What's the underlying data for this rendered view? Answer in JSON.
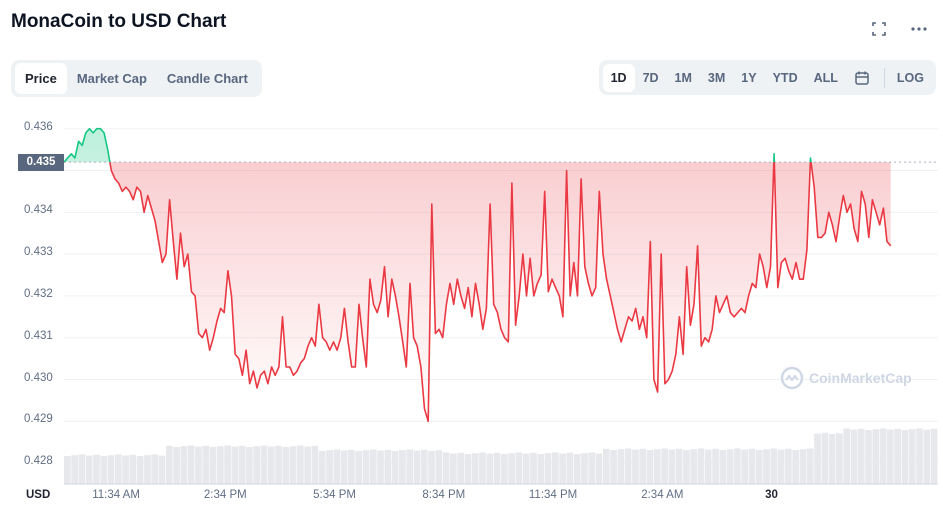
{
  "title": "MonaCoin to USD Chart",
  "icons": {
    "fullscreen": "fullscreen-icon",
    "more": "more-icon",
    "calendar": "calendar-icon"
  },
  "tabs": [
    {
      "label": "Price",
      "active": true
    },
    {
      "label": "Market Cap",
      "active": false
    },
    {
      "label": "Candle Chart",
      "active": false
    }
  ],
  "ranges": [
    {
      "label": "1D",
      "active": true
    },
    {
      "label": "7D",
      "active": false
    },
    {
      "label": "1M",
      "active": false
    },
    {
      "label": "3M",
      "active": false
    },
    {
      "label": "1Y",
      "active": false
    },
    {
      "label": "YTD",
      "active": false
    },
    {
      "label": "ALL",
      "active": false
    }
  ],
  "log_label": "LOG",
  "watermark": "CoinMarketCap",
  "colors": {
    "up": "#16c784",
    "down": "#ea3943",
    "volume": "#e6e8ec"
  },
  "chart_data": {
    "type": "line",
    "title": "MonaCoin to USD Chart",
    "y_unit_label": "USD",
    "current_price_label": "0.435",
    "reference_price": 0.4352,
    "y_ticks": [
      "0.428",
      "0.429",
      "0.430",
      "0.431",
      "0.432",
      "0.433",
      "0.434",
      "0.435",
      "0.436"
    ],
    "ylim": [
      0.4275,
      0.4364
    ],
    "x_tick_labels": [
      {
        "label": "11:34 AM",
        "bold": false
      },
      {
        "label": "2:34 PM",
        "bold": false
      },
      {
        "label": "5:34 PM",
        "bold": false
      },
      {
        "label": "8:34 PM",
        "bold": false
      },
      {
        "label": "11:34 PM",
        "bold": false
      },
      {
        "label": "2:34 AM",
        "bold": false
      },
      {
        "label": "30",
        "bold": true
      }
    ],
    "x_tick_positions": [
      1.43,
      4.43,
      7.43,
      10.43,
      13.43,
      16.43,
      19.43
    ],
    "x_range": [
      0,
      24
    ],
    "x_unit": "hours from chart start",
    "series": [
      {
        "values": [
          [
            0.0,
            0.4352
          ],
          [
            0.1,
            0.4353
          ],
          [
            0.2,
            0.4354
          ],
          [
            0.3,
            0.4353
          ],
          [
            0.4,
            0.4357
          ],
          [
            0.5,
            0.4356
          ],
          [
            0.6,
            0.4359
          ],
          [
            0.7,
            0.436
          ],
          [
            0.8,
            0.4359
          ],
          [
            0.9,
            0.436
          ],
          [
            1.0,
            0.436
          ],
          [
            1.1,
            0.4359
          ],
          [
            1.2,
            0.4355
          ],
          [
            1.3,
            0.435
          ],
          [
            1.4,
            0.4348
          ],
          [
            1.5,
            0.4347
          ],
          [
            1.6,
            0.4345
          ],
          [
            1.7,
            0.4346
          ],
          [
            1.8,
            0.4345
          ],
          [
            1.9,
            0.4343
          ],
          [
            2.0,
            0.4346
          ],
          [
            2.1,
            0.4345
          ],
          [
            2.2,
            0.434
          ],
          [
            2.3,
            0.4344
          ],
          [
            2.4,
            0.4341
          ],
          [
            2.5,
            0.4338
          ],
          [
            2.6,
            0.4333
          ],
          [
            2.7,
            0.4328
          ],
          [
            2.8,
            0.433
          ],
          [
            2.9,
            0.4343
          ],
          [
            3.0,
            0.4333
          ],
          [
            3.1,
            0.4324
          ],
          [
            3.2,
            0.4335
          ],
          [
            3.3,
            0.4327
          ],
          [
            3.4,
            0.433
          ],
          [
            3.5,
            0.4321
          ],
          [
            3.6,
            0.432
          ],
          [
            3.7,
            0.4311
          ],
          [
            3.8,
            0.431
          ],
          [
            3.9,
            0.4312
          ],
          [
            4.0,
            0.4307
          ],
          [
            4.1,
            0.431
          ],
          [
            4.2,
            0.4314
          ],
          [
            4.3,
            0.4317
          ],
          [
            4.4,
            0.4316
          ],
          [
            4.5,
            0.4326
          ],
          [
            4.6,
            0.432
          ],
          [
            4.7,
            0.4306
          ],
          [
            4.8,
            0.4305
          ],
          [
            4.9,
            0.4301
          ],
          [
            5.0,
            0.4307
          ],
          [
            5.1,
            0.4299
          ],
          [
            5.2,
            0.4302
          ],
          [
            5.3,
            0.4298
          ],
          [
            5.4,
            0.4301
          ],
          [
            5.5,
            0.4302
          ],
          [
            5.6,
            0.4299
          ],
          [
            5.7,
            0.4303
          ],
          [
            5.8,
            0.4301
          ],
          [
            5.9,
            0.4303
          ],
          [
            6.0,
            0.4315
          ],
          [
            6.1,
            0.4303
          ],
          [
            6.2,
            0.4303
          ],
          [
            6.3,
            0.4301
          ],
          [
            6.4,
            0.4302
          ],
          [
            6.5,
            0.4304
          ],
          [
            6.6,
            0.4305
          ],
          [
            6.7,
            0.4308
          ],
          [
            6.8,
            0.431
          ],
          [
            6.9,
            0.4308
          ],
          [
            7.0,
            0.4318
          ],
          [
            7.1,
            0.431
          ],
          [
            7.2,
            0.4309
          ],
          [
            7.3,
            0.4307
          ],
          [
            7.4,
            0.4309
          ],
          [
            7.5,
            0.4307
          ],
          [
            7.6,
            0.431
          ],
          [
            7.7,
            0.4317
          ],
          [
            7.8,
            0.4309
          ],
          [
            7.9,
            0.4303
          ],
          [
            8.0,
            0.4303
          ],
          [
            8.1,
            0.4318
          ],
          [
            8.2,
            0.431
          ],
          [
            8.3,
            0.4303
          ],
          [
            8.4,
            0.4324
          ],
          [
            8.5,
            0.4318
          ],
          [
            8.6,
            0.4316
          ],
          [
            8.7,
            0.4319
          ],
          [
            8.8,
            0.4327
          ],
          [
            8.9,
            0.4315
          ],
          [
            9.0,
            0.4324
          ],
          [
            9.1,
            0.432
          ],
          [
            9.2,
            0.4315
          ],
          [
            9.3,
            0.4309
          ],
          [
            9.4,
            0.4303
          ],
          [
            9.5,
            0.4323
          ],
          [
            9.6,
            0.431
          ],
          [
            9.7,
            0.4308
          ],
          [
            9.8,
            0.4303
          ],
          [
            9.9,
            0.4293
          ],
          [
            10.0,
            0.429
          ],
          [
            10.1,
            0.4342
          ],
          [
            10.2,
            0.4311
          ],
          [
            10.3,
            0.4312
          ],
          [
            10.4,
            0.431
          ],
          [
            10.5,
            0.4318
          ],
          [
            10.6,
            0.4323
          ],
          [
            10.7,
            0.4318
          ],
          [
            10.8,
            0.4324
          ],
          [
            10.9,
            0.432
          ],
          [
            11.0,
            0.4317
          ],
          [
            11.1,
            0.4322
          ],
          [
            11.2,
            0.4315
          ],
          [
            11.3,
            0.4323
          ],
          [
            11.4,
            0.4318
          ],
          [
            11.5,
            0.4312
          ],
          [
            11.6,
            0.4317
          ],
          [
            11.7,
            0.4342
          ],
          [
            11.8,
            0.4318
          ],
          [
            11.9,
            0.4316
          ],
          [
            12.0,
            0.4312
          ],
          [
            12.1,
            0.431
          ],
          [
            12.2,
            0.4309
          ],
          [
            12.3,
            0.4347
          ],
          [
            12.4,
            0.4313
          ],
          [
            12.5,
            0.432
          ],
          [
            12.6,
            0.433
          ],
          [
            12.7,
            0.432
          ],
          [
            12.8,
            0.4329
          ],
          [
            12.9,
            0.432
          ],
          [
            13.0,
            0.4323
          ],
          [
            13.1,
            0.4325
          ],
          [
            13.2,
            0.4345
          ],
          [
            13.3,
            0.4321
          ],
          [
            13.4,
            0.4324
          ],
          [
            13.5,
            0.4322
          ],
          [
            13.6,
            0.432
          ],
          [
            13.7,
            0.4315
          ],
          [
            13.8,
            0.435
          ],
          [
            13.9,
            0.432
          ],
          [
            14.0,
            0.4328
          ],
          [
            14.1,
            0.432
          ],
          [
            14.2,
            0.4348
          ],
          [
            14.3,
            0.4327
          ],
          [
            14.4,
            0.4323
          ],
          [
            14.5,
            0.432
          ],
          [
            14.6,
            0.4322
          ],
          [
            14.7,
            0.4345
          ],
          [
            14.8,
            0.433
          ],
          [
            14.9,
            0.4324
          ],
          [
            15.0,
            0.432
          ],
          [
            15.1,
            0.4316
          ],
          [
            15.2,
            0.4312
          ],
          [
            15.3,
            0.4309
          ],
          [
            15.4,
            0.4312
          ],
          [
            15.5,
            0.4315
          ],
          [
            15.6,
            0.4314
          ],
          [
            15.7,
            0.4317
          ],
          [
            15.8,
            0.4312
          ],
          [
            15.9,
            0.4315
          ],
          [
            16.0,
            0.431
          ],
          [
            16.1,
            0.4333
          ],
          [
            16.2,
            0.43
          ],
          [
            16.3,
            0.4297
          ],
          [
            16.4,
            0.433
          ],
          [
            16.5,
            0.4299
          ],
          [
            16.6,
            0.43
          ],
          [
            16.7,
            0.4302
          ],
          [
            16.8,
            0.4306
          ],
          [
            16.9,
            0.4315
          ],
          [
            17.0,
            0.4306
          ],
          [
            17.1,
            0.4327
          ],
          [
            17.2,
            0.4313
          ],
          [
            17.3,
            0.4318
          ],
          [
            17.4,
            0.4332
          ],
          [
            17.5,
            0.4308
          ],
          [
            17.6,
            0.431
          ],
          [
            17.7,
            0.4309
          ],
          [
            17.8,
            0.4312
          ],
          [
            17.9,
            0.432
          ],
          [
            18.0,
            0.4316
          ],
          [
            18.1,
            0.4318
          ],
          [
            18.2,
            0.432
          ],
          [
            18.3,
            0.4316
          ],
          [
            18.4,
            0.4315
          ],
          [
            18.5,
            0.4316
          ],
          [
            18.6,
            0.4317
          ],
          [
            18.7,
            0.4316
          ],
          [
            18.8,
            0.432
          ],
          [
            18.9,
            0.4323
          ],
          [
            19.0,
            0.4322
          ],
          [
            19.1,
            0.433
          ],
          [
            19.2,
            0.4327
          ],
          [
            19.3,
            0.4322
          ],
          [
            19.4,
            0.4327
          ],
          [
            19.5,
            0.4354
          ],
          [
            19.6,
            0.4322
          ],
          [
            19.7,
            0.4328
          ],
          [
            19.8,
            0.4329
          ],
          [
            19.9,
            0.4326
          ],
          [
            20.0,
            0.4324
          ],
          [
            20.1,
            0.4328
          ],
          [
            20.2,
            0.4324
          ],
          [
            20.3,
            0.4324
          ],
          [
            20.4,
            0.4331
          ],
          [
            20.5,
            0.4353
          ],
          [
            20.6,
            0.4346
          ],
          [
            20.7,
            0.4334
          ],
          [
            20.8,
            0.4334
          ],
          [
            20.9,
            0.4335
          ],
          [
            21.0,
            0.434
          ],
          [
            21.1,
            0.4337
          ],
          [
            21.2,
            0.4333
          ],
          [
            21.3,
            0.4339
          ],
          [
            21.4,
            0.4344
          ],
          [
            21.5,
            0.434
          ],
          [
            21.6,
            0.4342
          ],
          [
            21.7,
            0.4336
          ],
          [
            21.8,
            0.4333
          ],
          [
            21.9,
            0.4345
          ],
          [
            22.0,
            0.4342
          ],
          [
            22.1,
            0.4334
          ],
          [
            22.2,
            0.4343
          ],
          [
            22.3,
            0.434
          ],
          [
            22.4,
            0.4337
          ],
          [
            22.5,
            0.4341
          ],
          [
            22.6,
            0.4333
          ],
          [
            22.7,
            0.4332
          ]
        ]
      }
    ],
    "volume_bars": "background volume bars (relative)",
    "grid": true
  }
}
